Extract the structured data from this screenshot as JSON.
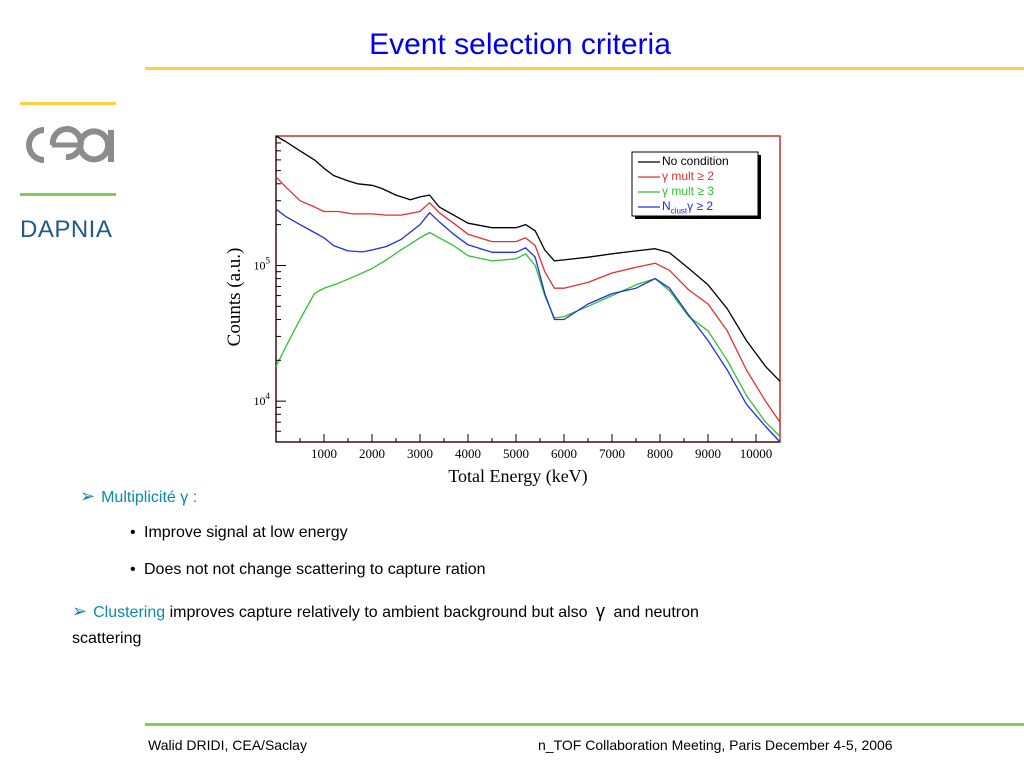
{
  "slide": {
    "title": "Event selection criteria",
    "logo": {
      "name": "cea-logo",
      "org": "DAPNIA"
    },
    "bullets": {
      "multiplicity": {
        "label": "Multiplicité",
        "symbol": "γ",
        "suffix": ":"
      },
      "sub": [
        "Improve signal at low energy",
        "Does not not change scattering to capture ration"
      ],
      "clustering": {
        "label": "Clustering",
        "text_before_symbol": "improves capture relatively to ambient background but also",
        "symbol": "γ",
        "text_after_symbol": "and neutron",
        "line2": "scattering"
      }
    },
    "footer": {
      "left": "Walid DRIDI, CEA/Saclay",
      "right": "n_TOF Collaboration Meeting, Paris December 4-5, 2006"
    },
    "colors": {
      "title": "#0000ee",
      "accent_yellow": "#ffd040",
      "accent_green": "#80d050",
      "teal": "#0a8ca5",
      "frame": "#c03030"
    }
  },
  "chart_data": {
    "type": "line",
    "xlabel": "Total Energy (keV)",
    "ylabel": "Counts (a.u.)",
    "xlim": [
      0,
      10500
    ],
    "ylim": [
      5000,
      900000
    ],
    "yscale": "log",
    "x_ticks": [
      1000,
      2000,
      3000,
      4000,
      5000,
      6000,
      7000,
      8000,
      9000,
      10000
    ],
    "x_tick_labels": [
      "1000",
      "2000",
      "3000",
      "4000",
      "5000",
      "6000",
      "7000",
      "8000",
      "9000",
      "10000"
    ],
    "y_tick_labels": [
      {
        "value": 10000,
        "base": "10",
        "exp": "4"
      },
      {
        "value": 100000,
        "base": "10",
        "exp": "5"
      }
    ],
    "legend_position": "top-right",
    "series": [
      {
        "name": "No condition",
        "name_html": "No condition",
        "color": "#000000",
        "x": [
          0,
          200,
          500,
          800,
          1000,
          1200,
          1500,
          1700,
          2000,
          2200,
          2500,
          2800,
          3000,
          3200,
          3400,
          3700,
          4000,
          4500,
          5000,
          5200,
          5400,
          5600,
          5800,
          6000,
          6500,
          7000,
          7500,
          7900,
          8200,
          8600,
          9000,
          9400,
          9800,
          10200,
          10500
        ],
        "y": [
          900000,
          820000,
          700000,
          600000,
          520000,
          460000,
          420000,
          400000,
          390000,
          370000,
          330000,
          305000,
          320000,
          330000,
          270000,
          235000,
          205000,
          190000,
          190000,
          200000,
          180000,
          130000,
          108000,
          110000,
          115000,
          122000,
          128000,
          133000,
          124000,
          95000,
          72000,
          48000,
          28000,
          18000,
          14000
        ]
      },
      {
        "name": "γ mult ≥ 2",
        "name_html": "γ mult ≥ 2",
        "color": "#e03030",
        "x": [
          0,
          200,
          500,
          800,
          1000,
          1300,
          1600,
          2000,
          2300,
          2600,
          3000,
          3200,
          3400,
          3700,
          4000,
          4500,
          5000,
          5200,
          5400,
          5600,
          5800,
          6000,
          6500,
          7000,
          7500,
          7900,
          8200,
          8600,
          9000,
          9400,
          9800,
          10200,
          10500
        ],
        "y": [
          450000,
          380000,
          300000,
          270000,
          250000,
          250000,
          240000,
          240000,
          235000,
          235000,
          250000,
          290000,
          245000,
          205000,
          170000,
          150000,
          150000,
          160000,
          140000,
          90000,
          68000,
          68000,
          75000,
          88000,
          97000,
          104000,
          92000,
          66000,
          52000,
          33000,
          17000,
          10000,
          7000
        ]
      },
      {
        "name": "γ mult ≥ 3",
        "name_html": "γ mult ≥ 3",
        "color": "#30c030",
        "x": [
          0,
          200,
          500,
          800,
          1000,
          1300,
          1600,
          2000,
          2300,
          2600,
          3000,
          3200,
          3400,
          3700,
          4000,
          4500,
          5000,
          5200,
          5400,
          5600,
          5800,
          6000,
          6500,
          7000,
          7500,
          7900,
          8200,
          8600,
          9000,
          9400,
          9800,
          10200,
          10500
        ],
        "y": [
          18000,
          25000,
          40000,
          62000,
          68000,
          74000,
          82000,
          95000,
          110000,
          130000,
          160000,
          175000,
          160000,
          140000,
          118000,
          108000,
          112000,
          122000,
          100000,
          60000,
          41000,
          42000,
          50000,
          60000,
          72000,
          80000,
          65000,
          42000,
          33000,
          20000,
          11000,
          7000,
          5500
        ]
      },
      {
        "name": "Nclustγ ≥ 2",
        "name_html": "N<sub>clust</sub>γ ≥ 2",
        "color": "#2030e0",
        "x": [
          0,
          200,
          500,
          800,
          1000,
          1200,
          1500,
          1800,
          2000,
          2300,
          2600,
          3000,
          3200,
          3400,
          3700,
          4000,
          4500,
          5000,
          5200,
          5400,
          5600,
          5800,
          6000,
          6500,
          7000,
          7500,
          7900,
          8200,
          8600,
          9000,
          9400,
          9800,
          10200,
          10500
        ],
        "y": [
          260000,
          230000,
          200000,
          175000,
          160000,
          140000,
          128000,
          126000,
          130000,
          138000,
          155000,
          200000,
          245000,
          210000,
          170000,
          142000,
          125000,
          125000,
          135000,
          115000,
          62000,
          40000,
          40000,
          52000,
          62000,
          68000,
          80000,
          68000,
          43000,
          28000,
          17000,
          9500,
          6500,
          5000
        ]
      }
    ]
  }
}
